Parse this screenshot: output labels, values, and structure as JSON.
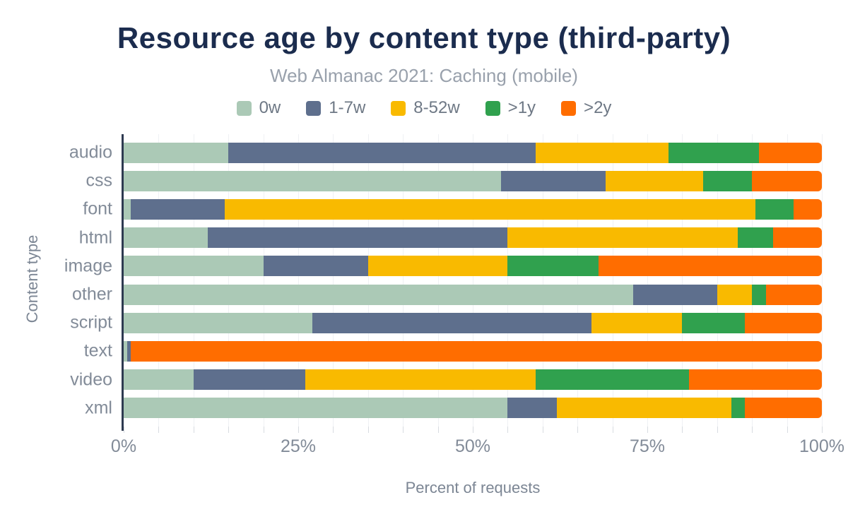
{
  "chart_data": {
    "type": "bar",
    "orientation": "horizontal",
    "stacked": true,
    "title": "Resource age by content type (third-party)",
    "subtitle": "Web Almanac 2021: Caching (mobile)",
    "xlabel": "Percent of requests",
    "ylabel": "Content type",
    "xlim": [
      0,
      100
    ],
    "grid": "minor-vertical",
    "legend_position": "top",
    "categories": [
      "audio",
      "css",
      "font",
      "html",
      "image",
      "other",
      "script",
      "text",
      "video",
      "xml"
    ],
    "series": [
      {
        "name": "0w",
        "color": "#abc9b6",
        "values": [
          15,
          54,
          1,
          12,
          20,
          73,
          27,
          0.5,
          10,
          55
        ]
      },
      {
        "name": "1-7w",
        "color": "#5e6f8d",
        "values": [
          44,
          15,
          13.5,
          43,
          15,
          12,
          40,
          0.5,
          16,
          7
        ]
      },
      {
        "name": "8-52w",
        "color": "#f9ba00",
        "values": [
          19,
          14,
          76,
          33,
          20,
          5,
          13,
          0,
          33,
          25
        ]
      },
      {
        "name": ">1y",
        "color": "#30a14e",
        "values": [
          13,
          7,
          5.5,
          5,
          13,
          2,
          9,
          0,
          22,
          2
        ]
      },
      {
        "name": ">2y",
        "color": "#ff6d00",
        "values": [
          9,
          10,
          4,
          7,
          32,
          8,
          11,
          99,
          19,
          11
        ]
      }
    ],
    "xticks": {
      "major": [
        0,
        25,
        50,
        75,
        100
      ],
      "labels": [
        "0%",
        "25%",
        "50%",
        "75%",
        "100%"
      ],
      "minor_step": 5
    },
    "colors": {
      "title": "#1b2c4e",
      "subtitle": "#99a1ac",
      "axis_line": "#2e3a50",
      "labels": "#828b98"
    }
  }
}
